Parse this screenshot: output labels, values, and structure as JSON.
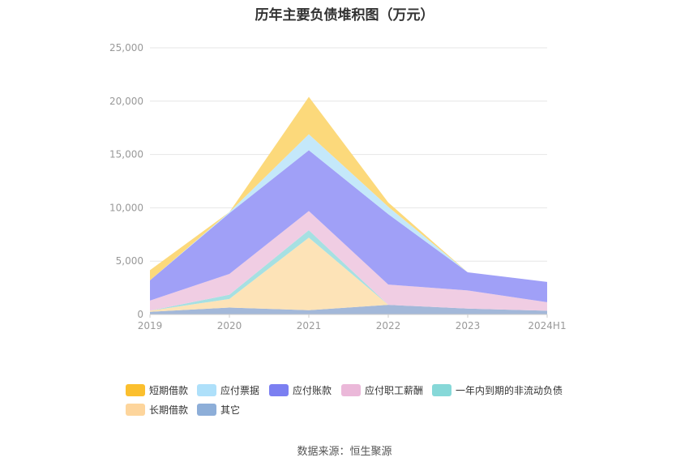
{
  "chart_data": {
    "type": "area",
    "stacked": true,
    "title": "历年主要负债堆积图（万元）",
    "categories": [
      "2019",
      "2020",
      "2021",
      "2022",
      "2023",
      "2024H1"
    ],
    "ylim": [
      0,
      25000
    ],
    "yticks": [
      "0",
      "5,000",
      "10,000",
      "15,000",
      "20,000",
      "25,000"
    ],
    "ytick_values": [
      0,
      5000,
      10000,
      15000,
      20000,
      25000
    ],
    "grid": true,
    "legend_position": "bottom",
    "series": [
      {
        "name": "其它",
        "color": "#a3b8d9",
        "values": [
          250,
          650,
          400,
          900,
          550,
          350
        ]
      },
      {
        "name": "长期借款",
        "color": "#fde3b7",
        "values": [
          100,
          800,
          6800,
          0,
          0,
          0
        ]
      },
      {
        "name": "一年内到期的非流动负债",
        "color": "#a6e0e2",
        "values": [
          0,
          400,
          700,
          0,
          0,
          0
        ]
      },
      {
        "name": "应付职工薪酬",
        "color": "#f0cde3",
        "values": [
          950,
          1950,
          1800,
          1900,
          1700,
          800
        ]
      },
      {
        "name": "应付账款",
        "color": "#a0a0f7",
        "values": [
          1900,
          5700,
          5700,
          6600,
          1700,
          1900
        ]
      },
      {
        "name": "应付票据",
        "color": "#c4e8fa",
        "values": [
          0,
          100,
          1500,
          700,
          0,
          0
        ]
      },
      {
        "name": "短期借款",
        "color": "#fcd97b",
        "values": [
          950,
          0,
          3500,
          400,
          0,
          0
        ]
      }
    ]
  },
  "legend": [
    {
      "label": "短期借款",
      "color": "#fbbf2e"
    },
    {
      "label": "应付票据",
      "color": "#aee0fa"
    },
    {
      "label": "应付账款",
      "color": "#7b7ff1"
    },
    {
      "label": "应付职工薪酬",
      "color": "#ebb8d9"
    },
    {
      "label": "一年内到期的非流动负债",
      "color": "#86d8d8"
    },
    {
      "label": "长期借款",
      "color": "#fdd59c"
    },
    {
      "label": "其它",
      "color": "#8daed8"
    }
  ],
  "source": "数据来源：恒生聚源"
}
